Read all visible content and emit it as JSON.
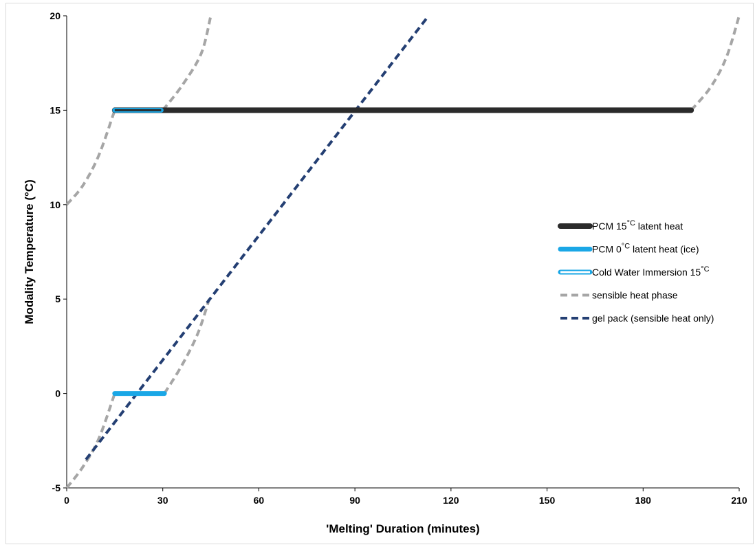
{
  "chart_data": {
    "type": "line",
    "title": "",
    "xlabel": "'Melting' Duration (minutes)",
    "ylabel": "Modality Temperature (°C)",
    "xlim": [
      0,
      210
    ],
    "ylim": [
      -5,
      20
    ],
    "xticks": [
      0,
      30,
      60,
      90,
      120,
      150,
      180,
      210
    ],
    "yticks": [
      -5,
      0,
      5,
      10,
      15,
      20
    ],
    "grid": false,
    "legend_position": "right",
    "colors": {
      "pcm15": "#2b2b2b",
      "ice": "#1aa7e6",
      "cwi_outline": "#1aa7e6",
      "cwi_fill": "#ffffff",
      "sensible": "#a6a6a6",
      "gel": "#243f73"
    },
    "legend": [
      {
        "key": "pcm15",
        "main": "PCM 15",
        "sup": "°C",
        "tail": " latent heat",
        "style": "solid-thick"
      },
      {
        "key": "ice",
        "main": "PCM 0",
        "sup": "°C",
        "tail": " latent heat (ice)",
        "style": "solid"
      },
      {
        "key": "cwi",
        "main": "Cold Water Immersion 15",
        "sup": "°C",
        "tail": "",
        "style": "outline"
      },
      {
        "key": "sensible",
        "main": "sensible heat phase",
        "sup": "",
        "tail": "",
        "style": "dashed"
      },
      {
        "key": "gel",
        "main": "gel pack (sensible heat only)",
        "sup": "",
        "tail": "",
        "style": "dashed"
      }
    ],
    "series": [
      {
        "key": "pcm15",
        "style": "solid-thick",
        "points": [
          [
            15,
            15
          ],
          [
            195,
            15
          ]
        ]
      },
      {
        "key": "ice",
        "style": "solid",
        "points": [
          [
            15,
            0
          ],
          [
            30.5,
            0
          ]
        ]
      },
      {
        "key": "cwi",
        "style": "outline",
        "points": [
          [
            15,
            15
          ],
          [
            29.5,
            15
          ]
        ]
      },
      {
        "key": "gel",
        "style": "dashed",
        "points": [
          [
            6,
            -3.5
          ],
          [
            113,
            20
          ]
        ]
      },
      {
        "key": "sensible",
        "style": "dashed",
        "segment": "low-to-ice",
        "points": [
          [
            0,
            -5
          ],
          [
            5,
            -3.9
          ],
          [
            10,
            -2.4
          ],
          [
            15,
            0
          ]
        ]
      },
      {
        "key": "sensible",
        "style": "dashed",
        "segment": "ice-to-5",
        "points": [
          [
            30.5,
            0
          ],
          [
            36,
            1.5
          ],
          [
            41,
            3.2
          ],
          [
            44.5,
            5
          ]
        ]
      },
      {
        "key": "sensible",
        "style": "dashed",
        "segment": "10-to-pcm",
        "points": [
          [
            0,
            10
          ],
          [
            5,
            11
          ],
          [
            10,
            12.6
          ],
          [
            15,
            15
          ]
        ]
      },
      {
        "key": "sensible",
        "style": "dashed",
        "segment": "cwi-to-top",
        "points": [
          [
            30,
            15
          ],
          [
            36,
            16.3
          ],
          [
            42,
            18
          ],
          [
            45,
            20
          ]
        ]
      },
      {
        "key": "sensible",
        "style": "dashed",
        "segment": "pcm-to-top",
        "points": [
          [
            195,
            15
          ],
          [
            201,
            16.2
          ],
          [
            206,
            17.8
          ],
          [
            210,
            20
          ]
        ]
      }
    ]
  }
}
